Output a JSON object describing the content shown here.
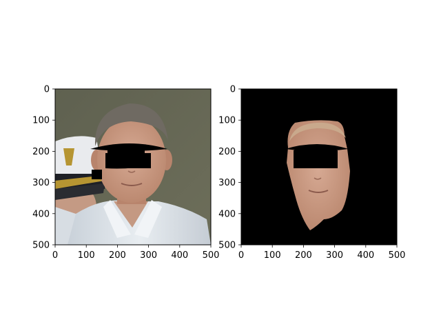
{
  "figure": {
    "panels": [
      {
        "name": "left",
        "subject": "photo-with-mask",
        "xticks": [
          "0",
          "100",
          "200",
          "300",
          "400",
          "500"
        ],
        "yticks": [
          "0",
          "100",
          "200",
          "300",
          "400",
          "500"
        ]
      },
      {
        "name": "right",
        "subject": "segmented-face-on-black",
        "xticks": [
          "0",
          "100",
          "200",
          "300",
          "400",
          "500"
        ],
        "yticks": [
          "0",
          "100",
          "200",
          "300",
          "400",
          "500"
        ]
      }
    ]
  },
  "colors": {
    "background": "#ffffff",
    "mask": "#000000",
    "photo_backdrop": "#5f6150",
    "shirt": "#d9dfe6",
    "skin": "#c79a83",
    "hair": "#6f6a62",
    "cap_white": "#e9ebee",
    "cap_black": "#1e2026",
    "gold": "#b69532"
  }
}
